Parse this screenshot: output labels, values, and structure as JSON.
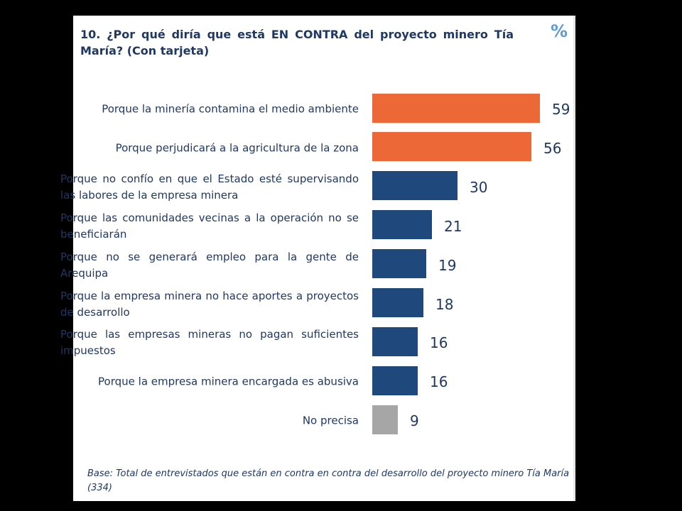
{
  "chart_data": {
    "type": "bar",
    "orientation": "horizontal",
    "title": "10. ¿Por qué diría que está EN CONTRA del proyecto minero Tía María? (Con tarjeta)",
    "unit_symbol": "%",
    "categories": [
      "Porque la minería contamina el medio ambiente",
      "Porque  perjudicará a la agricultura de la zona",
      "Porque no confío en que el Estado esté supervisando las labores de la empresa minera",
      "Porque las comunidades vecinas a la operación no se beneficiarán",
      "Porque no se generará empleo para la gente de Arequipa",
      "Porque la empresa minera no hace aportes a proyectos de desarrollo",
      "Porque las empresas mineras no pagan suficientes impuestos",
      "Porque la empresa minera encargada es abusiva",
      "No precisa"
    ],
    "values": [
      59,
      56,
      30,
      21,
      19,
      18,
      16,
      16,
      9
    ],
    "value_labels": [
      "59",
      "56",
      "30",
      "21",
      "19",
      "18",
      "16",
      "16",
      "9"
    ],
    "bar_colors": [
      "#ed6837",
      "#ed6837",
      "#1f497d",
      "#1f497d",
      "#1f497d",
      "#1f497d",
      "#1f497d",
      "#1f497d",
      "#a6a6a6"
    ],
    "xlim": [
      0,
      59
    ],
    "grid": false,
    "legend": "none"
  },
  "footnote": "Base: Total de entrevistados que están en contra en contra del desarrollo del proyecto minero Tía María (334)"
}
